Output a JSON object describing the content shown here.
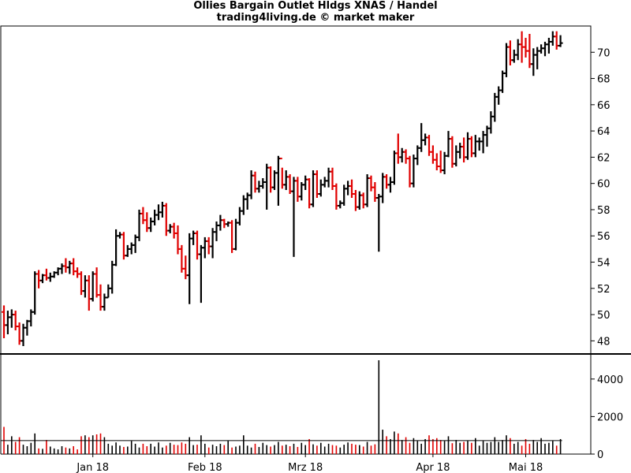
{
  "title": "Ollies Bargain Outlet Hldgs XNAS / Handel",
  "subtitle": "trading4living.de © market maker",
  "colors": {
    "up": "#000000",
    "down": "#e00000",
    "background": "#ffffff",
    "axis": "#000000"
  },
  "chart_data": [
    {
      "type": "ohlc",
      "name": "price",
      "ylim": [
        47,
        72
      ],
      "yticks": [
        48,
        50,
        52,
        54,
        56,
        58,
        60,
        62,
        64,
        66,
        68,
        70
      ],
      "y_axis_side": "right",
      "x_tick_labels": [
        {
          "label": "Jan 18",
          "index": 23
        },
        {
          "label": "Feb 18",
          "index": 52
        },
        {
          "label": "Mrz 18",
          "index": 78
        },
        {
          "label": "Apr 18",
          "index": 111
        },
        {
          "label": "Mai 18",
          "index": 135
        }
      ],
      "bars": [
        [
          50.2,
          50.7,
          48.2,
          49.2
        ],
        [
          49.2,
          50.3,
          48.5,
          49.8
        ],
        [
          49.8,
          50.4,
          49.0,
          50.0
        ],
        [
          50.0,
          50.3,
          48.8,
          49.1
        ],
        [
          49.1,
          49.4,
          47.7,
          48.0
        ],
        [
          48.0,
          49.3,
          47.6,
          49.0
        ],
        [
          49.0,
          49.6,
          48.4,
          49.5
        ],
        [
          49.5,
          50.4,
          49.1,
          50.2
        ],
        [
          50.2,
          53.3,
          50.0,
          53.1
        ],
        [
          53.1,
          53.4,
          52.0,
          52.6
        ],
        [
          52.6,
          53.1,
          52.4,
          53.0
        ],
        [
          53.0,
          53.5,
          52.6,
          52.8
        ],
        [
          52.8,
          53.2,
          52.5,
          52.9
        ],
        [
          52.9,
          53.3,
          52.8,
          53.2
        ],
        [
          53.2,
          53.6,
          53.0,
          53.5
        ],
        [
          53.5,
          53.9,
          53.1,
          53.7
        ],
        [
          53.7,
          54.3,
          53.2,
          53.6
        ],
        [
          53.6,
          54.1,
          53.1,
          53.9
        ],
        [
          53.9,
          54.3,
          53.0,
          53.3
        ],
        [
          53.3,
          53.6,
          52.8,
          53.1
        ],
        [
          53.1,
          53.3,
          51.5,
          51.8
        ],
        [
          51.8,
          53.0,
          51.3,
          52.6
        ],
        [
          52.6,
          53.0,
          50.3,
          51.2
        ],
        [
          51.2,
          53.3,
          51.0,
          53.1
        ],
        [
          53.1,
          53.6,
          51.3,
          51.5
        ],
        [
          51.5,
          52.3,
          50.3,
          50.6
        ],
        [
          50.6,
          51.6,
          50.3,
          51.3
        ],
        [
          51.3,
          52.3,
          51.3,
          52.0
        ],
        [
          52.0,
          54.1,
          51.6,
          53.8
        ],
        [
          53.8,
          56.5,
          53.7,
          56.0
        ],
        [
          56.0,
          56.3,
          55.8,
          56.1
        ],
        [
          56.1,
          56.3,
          54.2,
          54.5
        ],
        [
          54.5,
          55.3,
          54.4,
          55.0
        ],
        [
          55.0,
          55.5,
          54.6,
          55.3
        ],
        [
          55.3,
          56.1,
          54.7,
          55.9
        ],
        [
          55.9,
          58.0,
          55.6,
          57.7
        ],
        [
          57.7,
          58.2,
          56.9,
          57.2
        ],
        [
          57.2,
          57.8,
          56.3,
          56.6
        ],
        [
          56.6,
          57.4,
          56.3,
          57.1
        ],
        [
          57.1,
          58.0,
          56.8,
          57.6
        ],
        [
          57.6,
          58.4,
          57.2,
          57.8
        ],
        [
          57.8,
          58.6,
          57.4,
          58.3
        ],
        [
          58.3,
          58.5,
          56.0,
          56.4
        ],
        [
          56.4,
          56.9,
          56.2,
          56.7
        ],
        [
          56.7,
          57.0,
          55.8,
          56.2
        ],
        [
          56.2,
          56.8,
          54.6,
          55.0
        ],
        [
          55.0,
          55.3,
          53.2,
          53.5
        ],
        [
          53.5,
          54.5,
          52.7,
          53.0
        ],
        [
          53.0,
          56.2,
          50.8,
          55.8
        ],
        [
          55.8,
          56.4,
          55.3,
          56.2
        ],
        [
          56.2,
          56.4,
          54.2,
          54.6
        ],
        [
          54.6,
          55.3,
          50.9,
          55.1
        ],
        [
          55.1,
          55.9,
          54.3,
          55.6
        ],
        [
          55.6,
          55.9,
          54.6,
          55.2
        ],
        [
          55.2,
          56.6,
          54.3,
          56.3
        ],
        [
          56.3,
          57.1,
          55.6,
          56.8
        ],
        [
          56.8,
          57.6,
          56.4,
          57.2
        ],
        [
          57.2,
          57.3,
          56.6,
          56.9
        ],
        [
          56.9,
          57.1,
          56.7,
          57.0
        ],
        [
          57.0,
          57.2,
          54.7,
          55.0
        ],
        [
          55.0,
          57.3,
          54.9,
          57.0
        ],
        [
          57.0,
          58.2,
          56.8,
          57.9
        ],
        [
          57.9,
          59.1,
          57.6,
          58.8
        ],
        [
          58.8,
          59.3,
          58.0,
          59.1
        ],
        [
          59.1,
          61.0,
          58.8,
          60.6
        ],
        [
          60.6,
          60.9,
          59.3,
          59.6
        ],
        [
          59.6,
          60.2,
          59.3,
          59.8
        ],
        [
          59.8,
          60.4,
          59.6,
          60.1
        ],
        [
          60.1,
          61.5,
          58.0,
          61.2
        ],
        [
          61.2,
          61.3,
          59.3,
          59.7
        ],
        [
          59.7,
          61.0,
          59.5,
          60.8
        ],
        [
          60.8,
          62.1,
          58.3,
          61.9
        ],
        [
          61.9,
          61.2,
          59.6,
          59.9
        ],
        [
          59.9,
          61.0,
          59.5,
          60.5
        ],
        [
          60.5,
          60.7,
          59.2,
          59.4
        ],
        [
          59.4,
          60.5,
          54.4,
          60.2
        ],
        [
          60.2,
          60.5,
          58.6,
          59.0
        ],
        [
          59.0,
          60.1,
          58.7,
          59.9
        ],
        [
          59.9,
          60.6,
          59.5,
          60.3
        ],
        [
          60.3,
          60.4,
          58.1,
          58.4
        ],
        [
          58.4,
          61.0,
          58.2,
          60.7
        ],
        [
          60.7,
          61.0,
          58.9,
          59.2
        ],
        [
          59.2,
          60.3,
          59.0,
          59.9
        ],
        [
          59.9,
          60.5,
          59.7,
          60.2
        ],
        [
          60.2,
          61.2,
          59.7,
          60.9
        ],
        [
          60.9,
          61.2,
          59.5,
          59.8
        ],
        [
          59.8,
          60.0,
          58.0,
          58.3
        ],
        [
          58.3,
          58.7,
          58.1,
          58.5
        ],
        [
          58.5,
          59.9,
          58.3,
          59.6
        ],
        [
          59.6,
          60.2,
          59.1,
          59.8
        ],
        [
          59.8,
          60.3,
          58.9,
          59.2
        ],
        [
          59.2,
          59.5,
          57.9,
          58.2
        ],
        [
          58.2,
          59.4,
          58.0,
          59.1
        ],
        [
          59.1,
          59.3,
          58.1,
          58.4
        ],
        [
          58.4,
          60.7,
          58.2,
          60.4
        ],
        [
          60.4,
          60.6,
          59.4,
          59.7
        ],
        [
          59.7,
          60.1,
          58.6,
          58.9
        ],
        [
          58.9,
          59.2,
          54.8,
          59.0
        ],
        [
          59.0,
          60.8,
          58.5,
          60.5
        ],
        [
          60.5,
          60.7,
          59.6,
          59.9
        ],
        [
          59.9,
          60.5,
          59.3,
          60.1
        ],
        [
          60.1,
          62.5,
          59.9,
          62.3
        ],
        [
          62.3,
          63.8,
          61.5,
          62.0
        ],
        [
          62.0,
          62.7,
          61.6,
          62.4
        ],
        [
          62.4,
          62.6,
          61.5,
          61.9
        ],
        [
          61.9,
          62.1,
          59.7,
          60.0
        ],
        [
          60.0,
          62.2,
          59.7,
          61.9
        ],
        [
          61.9,
          62.9,
          61.4,
          62.7
        ],
        [
          62.7,
          64.6,
          62.4,
          63.3
        ],
        [
          63.3,
          63.8,
          62.9,
          63.5
        ],
        [
          63.5,
          63.7,
          62.1,
          62.4
        ],
        [
          62.4,
          62.9,
          61.5,
          61.8
        ],
        [
          61.8,
          62.3,
          61.0,
          61.3
        ],
        [
          61.3,
          62.5,
          60.8,
          61.0
        ],
        [
          61.0,
          62.4,
          60.7,
          62.1
        ],
        [
          62.1,
          64.0,
          62.0,
          63.4
        ],
        [
          63.4,
          63.6,
          61.2,
          61.5
        ],
        [
          61.5,
          62.9,
          61.3,
          62.4
        ],
        [
          62.4,
          63.1,
          61.9,
          62.8
        ],
        [
          62.8,
          63.5,
          61.6,
          62.0
        ],
        [
          62.0,
          63.9,
          61.8,
          63.4
        ],
        [
          63.4,
          63.6,
          62.0,
          62.3
        ],
        [
          62.3,
          63.7,
          62.0,
          63.2
        ],
        [
          63.2,
          63.5,
          62.5,
          63.2
        ],
        [
          63.2,
          64.0,
          62.3,
          63.7
        ],
        [
          63.7,
          64.4,
          62.8,
          64.2
        ],
        [
          64.2,
          65.5,
          63.8,
          65.1
        ],
        [
          65.1,
          66.9,
          64.7,
          66.6
        ],
        [
          66.6,
          67.4,
          66.0,
          67.1
        ],
        [
          67.1,
          68.6,
          66.9,
          68.4
        ],
        [
          68.4,
          70.7,
          68.1,
          70.4
        ],
        [
          70.4,
          70.9,
          69.0,
          69.4
        ],
        [
          69.4,
          70.2,
          69.2,
          69.8
        ],
        [
          69.8,
          71.0,
          69.4,
          70.6
        ],
        [
          70.6,
          71.6,
          69.2,
          70.4
        ],
        [
          70.4,
          71.1,
          69.6,
          70.1
        ],
        [
          70.1,
          71.4,
          68.8,
          69.1
        ],
        [
          69.1,
          70.3,
          68.2,
          69.8
        ],
        [
          69.8,
          70.4,
          68.7,
          70.1
        ],
        [
          70.1,
          70.6,
          69.9,
          70.3
        ],
        [
          70.3,
          70.8,
          69.7,
          70.6
        ],
        [
          70.6,
          71.1,
          69.9,
          70.8
        ],
        [
          70.8,
          71.6,
          70.5,
          71.2
        ],
        [
          71.2,
          71.6,
          70.2,
          70.5
        ],
        [
          70.5,
          71.3,
          70.4,
          70.7
        ]
      ]
    },
    {
      "type": "bar",
      "name": "volume",
      "ylim": [
        0,
        5000
      ],
      "yticks": [
        0,
        2000,
        4000
      ],
      "moving_average_level": 720,
      "values": [
        1450,
        500,
        950,
        650,
        900,
        500,
        420,
        600,
        1100,
        300,
        280,
        750,
        400,
        300,
        250,
        420,
        350,
        300,
        420,
        250,
        950,
        1000,
        900,
        1000,
        1050,
        1100,
        900,
        550,
        450,
        620,
        450,
        380,
        400,
        700,
        550,
        350,
        550,
        420,
        550,
        400,
        620,
        350,
        450,
        600,
        500,
        480,
        620,
        550,
        900,
        480,
        500,
        1000,
        550,
        350,
        500,
        420,
        550,
        480,
        700,
        350,
        400,
        450,
        1000,
        450,
        350,
        550,
        380,
        600,
        480,
        400,
        480,
        650,
        450,
        500,
        420,
        550,
        380,
        600,
        480,
        800,
        520,
        450,
        600,
        400,
        550,
        480,
        450,
        350,
        500,
        620,
        550,
        500,
        480,
        400,
        650,
        450,
        520,
        5000,
        1300,
        950,
        800,
        1200,
        1100,
        750,
        900,
        600,
        850,
        700,
        550,
        800,
        1000,
        800,
        850,
        750,
        700,
        950,
        580,
        750,
        600,
        650,
        700,
        600,
        850,
        450,
        700,
        600,
        650,
        900,
        650,
        750,
        1000,
        850,
        550,
        650,
        450,
        800,
        550,
        750,
        650,
        850,
        550,
        600,
        700,
        450,
        800
      ]
    }
  ]
}
